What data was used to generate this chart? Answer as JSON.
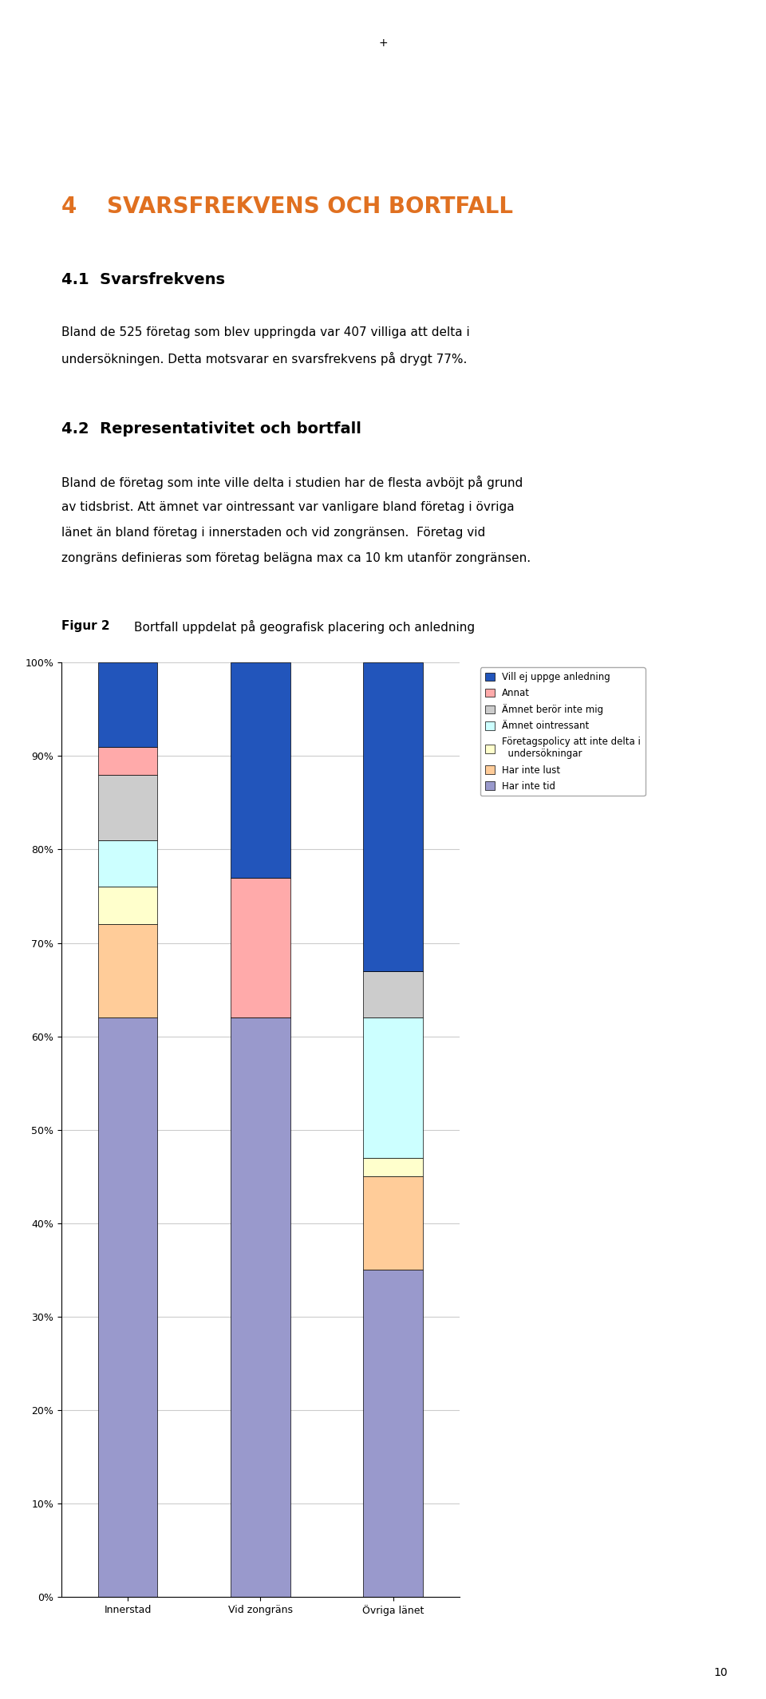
{
  "categories": [
    "Innerstad",
    "Vid zongräns",
    "Övriga länet"
  ],
  "series": [
    {
      "label": "Har inte tid",
      "color": "#9999cc",
      "values": [
        62,
        62,
        35
      ]
    },
    {
      "label": "Har inte lust",
      "color": "#ffcc99",
      "values": [
        10,
        0,
        10
      ]
    },
    {
      "label": "Företagspolicy att inte delta i\n  undersökningar",
      "color": "#ffffcc",
      "values": [
        4,
        0,
        2
      ]
    },
    {
      "label": "Ämnet ointressant",
      "color": "#ccffff",
      "values": [
        5,
        0,
        15
      ]
    },
    {
      "label": "Ämnet berör inte mig",
      "color": "#cccccc",
      "values": [
        7,
        0,
        5
      ]
    },
    {
      "label": "Annat",
      "color": "#ffaaaa",
      "values": [
        3,
        15,
        0
      ]
    },
    {
      "label": "Vill ej uppge anledning",
      "color": "#2255bb",
      "values": [
        9,
        23,
        33
      ]
    }
  ],
  "ylim": [
    0,
    100
  ],
  "yticks": [
    0,
    10,
    20,
    30,
    40,
    50,
    60,
    70,
    80,
    90,
    100
  ],
  "ytick_labels": [
    "0%",
    "10%",
    "20%",
    "30%",
    "40%",
    "50%",
    "60%",
    "70%",
    "80%",
    "90%",
    "100%"
  ],
  "figsize": [
    9.6,
    21.29
  ],
  "dpi": 100,
  "section_number": "4",
  "section_title": "SVARSFREKVENS OCH BORTFALL",
  "subtitle1": "4.1  Svarsfrekvens",
  "body1_line1": "Bland de 525 företag som blev uppringda var 407 villiga att delta i",
  "body1_line2": "undersökningen. Detta motsvarar en svarsfrekvens på drygt 77%.",
  "subtitle2": "4.2  Representativitet och bortfall",
  "body2_line1": "Bland de företag som inte ville delta i studien har de flesta avböjt på grund",
  "body2_line2": "av tidsbrist. Att ämnet var ointressant var vanligare bland företag i övriga",
  "body2_line3": "länet än bland företag i innerstaden och vid zongränsen.  Företag vid",
  "body2_line4": "zongräns definieras som företag belägna max ca 10 km utanför zongränsen.",
  "fig2_label": "Figur 2",
  "fig2_title": "Bortfall uppdelat på geografisk placering och anledning",
  "background_color": "#ffffff",
  "bar_width": 0.45,
  "legend_fontsize": 8.5,
  "axis_fontsize": 9,
  "grid_color": "#cccccc",
  "title_color": "#e07020",
  "page_number": "10",
  "plus_sign": "+"
}
